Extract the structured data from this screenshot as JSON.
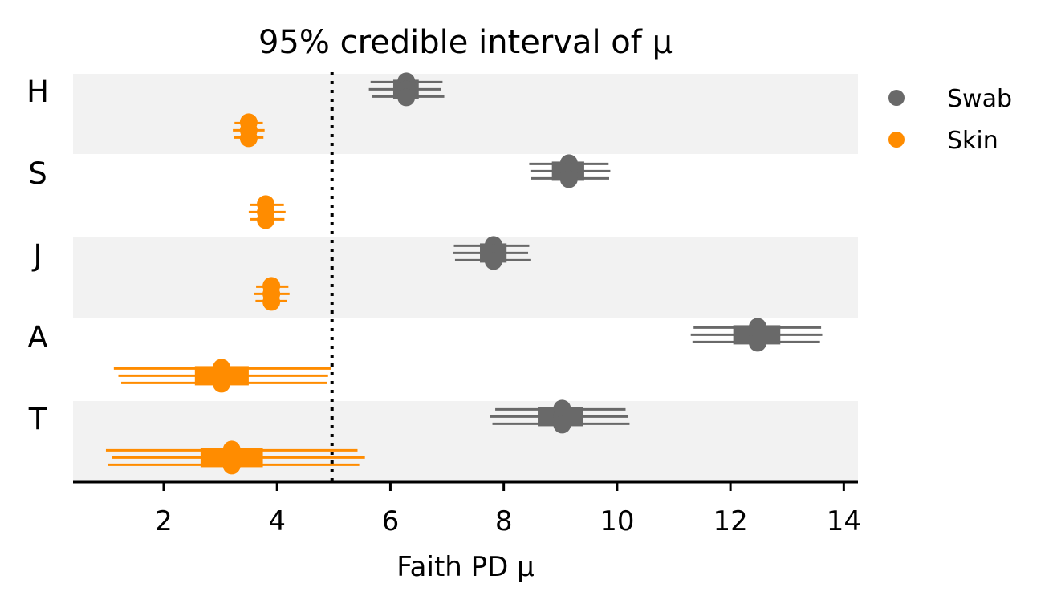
{
  "chart_data": {
    "type": "forest",
    "title": "95% credible interval of μ",
    "xlabel": "Faith PD μ",
    "ylabel": "",
    "xlim": [
      0.4,
      14.25
    ],
    "xticks": [
      2,
      4,
      6,
      8,
      10,
      12,
      14
    ],
    "reference_line": {
      "x": 4.97,
      "style": "dotted",
      "color": "#000000"
    },
    "grid": false,
    "legend_position": "right-top",
    "groups": [
      "H",
      "S",
      "J",
      "A",
      "T"
    ],
    "group_shading": [
      true,
      false,
      true,
      false,
      true
    ],
    "shade_color": "#f2f2f2",
    "series": [
      {
        "name": "Swab",
        "color": "#696969",
        "points": [
          {
            "group": "H",
            "median": 6.28,
            "iqr": [
              6.05,
              6.5
            ],
            "ci": [
              [
                5.65,
                6.92
              ],
              [
                5.62,
                6.9
              ],
              [
                5.68,
                6.95
              ]
            ]
          },
          {
            "group": "S",
            "median": 9.15,
            "iqr": [
              8.85,
              9.42
            ],
            "ci": [
              [
                8.45,
                9.85
              ],
              [
                8.47,
                9.88
              ],
              [
                8.48,
                9.86
              ]
            ]
          },
          {
            "group": "J",
            "median": 7.82,
            "iqr": [
              7.58,
              8.05
            ],
            "ci": [
              [
                7.12,
                8.45
              ],
              [
                7.1,
                8.43
              ],
              [
                7.14,
                8.47
              ]
            ]
          },
          {
            "group": "A",
            "median": 12.48,
            "iqr": [
              12.05,
              12.88
            ],
            "ci": [
              [
                11.35,
                13.6
              ],
              [
                11.3,
                13.62
              ],
              [
                11.33,
                13.58
              ]
            ]
          },
          {
            "group": "T",
            "median": 9.03,
            "iqr": [
              8.6,
              9.4
            ],
            "ci": [
              [
                7.85,
                10.15
              ],
              [
                7.75,
                10.2
              ],
              [
                7.8,
                10.22
              ]
            ]
          }
        ]
      },
      {
        "name": "Skin",
        "color": "#ff8c00",
        "points": [
          {
            "group": "H",
            "median": 3.5,
            "iqr": [
              3.4,
              3.6
            ],
            "ci": [
              [
                3.25,
                3.75
              ],
              [
                3.22,
                3.78
              ],
              [
                3.24,
                3.76
              ]
            ]
          },
          {
            "group": "S",
            "median": 3.8,
            "iqr": [
              3.7,
              3.9
            ],
            "ci": [
              [
                3.52,
                4.12
              ],
              [
                3.5,
                4.15
              ],
              [
                3.53,
                4.13
              ]
            ]
          },
          {
            "group": "J",
            "median": 3.9,
            "iqr": [
              3.8,
              4.0
            ],
            "ci": [
              [
                3.63,
                4.2
              ],
              [
                3.6,
                4.22
              ],
              [
                3.62,
                4.18
              ]
            ]
          },
          {
            "group": "A",
            "median": 3.02,
            "iqr": [
              2.55,
              3.5
            ],
            "ci": [
              [
                1.12,
                4.95
              ],
              [
                1.2,
                4.9
              ],
              [
                1.25,
                4.88
              ]
            ]
          },
          {
            "group": "T",
            "median": 3.2,
            "iqr": [
              2.65,
              3.75
            ],
            "ci": [
              [
                0.98,
                5.42
              ],
              [
                1.08,
                5.55
              ],
              [
                1.02,
                5.45
              ]
            ]
          }
        ]
      }
    ]
  }
}
